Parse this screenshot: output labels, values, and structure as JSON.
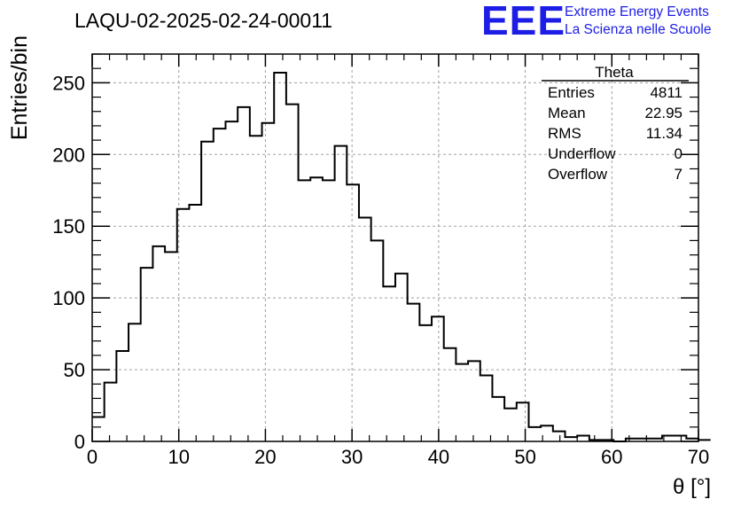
{
  "title": "LAQU-02-2025-02-24-00011",
  "logo": {
    "mark": "EEE",
    "line1": "Extreme Energy Events",
    "line2": "La Scienza nelle Scuole",
    "color": "#1d1de6"
  },
  "stats": {
    "name": "Theta",
    "rows": [
      {
        "label": "Entries",
        "value": "4811"
      },
      {
        "label": "Mean",
        "value": "22.95"
      },
      {
        "label": "RMS",
        "value": "11.34"
      },
      {
        "label": "Underflow",
        "value": "0"
      },
      {
        "label": "Overflow",
        "value": "7"
      }
    ]
  },
  "chart_data": {
    "type": "bar",
    "style": "step-histogram",
    "xlabel": "θ [°]",
    "ylabel": "Entries/bin",
    "xlim": [
      0,
      70
    ],
    "ylim": [
      0,
      270
    ],
    "xticks": [
      0,
      10,
      20,
      30,
      40,
      50,
      60,
      70
    ],
    "yticks": [
      0,
      50,
      100,
      150,
      200,
      250
    ],
    "grid": true,
    "bin_width": 1.4,
    "values": [
      17,
      41,
      63,
      82,
      121,
      136,
      132,
      162,
      165,
      209,
      218,
      223,
      233,
      213,
      222,
      257,
      235,
      182,
      184,
      182,
      206,
      179,
      156,
      140,
      108,
      117,
      96,
      81,
      87,
      65,
      54,
      56,
      46,
      31,
      23,
      27,
      10,
      11,
      7,
      3,
      4,
      1,
      1,
      0,
      2,
      2,
      2,
      4,
      4,
      2,
      1
    ]
  }
}
